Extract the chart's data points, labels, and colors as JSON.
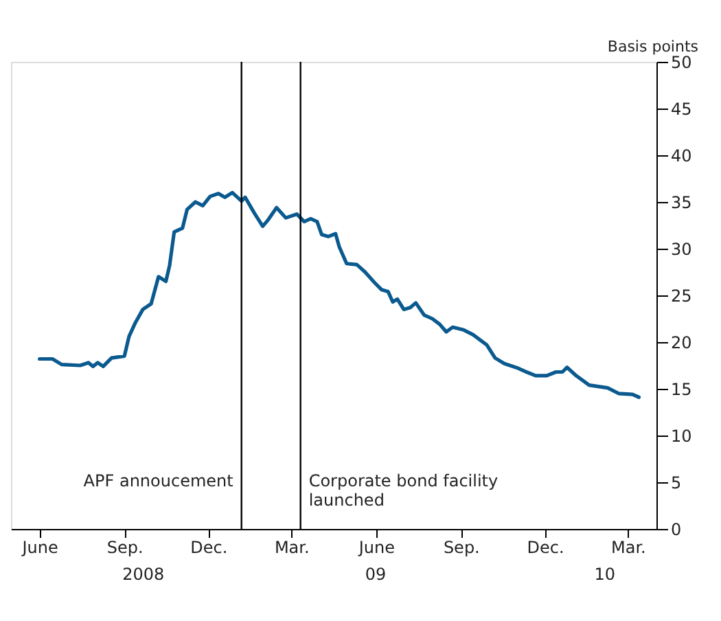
{
  "chart_data": {
    "type": "line",
    "ylabel": "Basis points",
    "x": [
      "2008-06-01",
      "2008-06-15",
      "2008-06-25",
      "2008-07-15",
      "2008-07-24",
      "2008-07-29",
      "2008-08-03",
      "2008-08-09",
      "2008-08-18",
      "2008-09-01",
      "2008-09-06",
      "2008-09-13",
      "2008-09-21",
      "2008-09-30",
      "2008-10-08",
      "2008-10-16",
      "2008-10-20",
      "2008-10-25",
      "2008-11-03",
      "2008-11-08",
      "2008-11-17",
      "2008-11-25",
      "2008-12-03",
      "2008-12-12",
      "2008-12-19",
      "2008-12-27",
      "2009-01-06",
      "2009-01-10",
      "2009-01-20",
      "2009-01-29",
      "2009-02-04",
      "2009-02-13",
      "2009-02-23",
      "2009-03-07",
      "2009-03-15",
      "2009-03-22",
      "2009-03-29",
      "2009-04-03",
      "2009-04-10",
      "2009-04-18",
      "2009-04-22",
      "2009-04-30",
      "2009-05-11",
      "2009-05-20",
      "2009-05-30",
      "2009-06-07",
      "2009-06-14",
      "2009-06-19",
      "2009-06-24",
      "2009-07-01",
      "2009-07-08",
      "2009-07-14",
      "2009-07-23",
      "2009-08-01",
      "2009-08-09",
      "2009-08-16",
      "2009-08-23",
      "2009-09-04",
      "2009-09-14",
      "2009-09-29",
      "2009-10-08",
      "2009-10-18",
      "2009-11-02",
      "2009-11-11",
      "2009-11-21",
      "2009-12-03",
      "2009-12-13",
      "2009-12-20",
      "2009-12-25",
      "2010-01-04",
      "2010-01-18",
      "2010-02-07",
      "2010-02-19",
      "2010-03-06",
      "2010-03-13"
    ],
    "series": [
      {
        "color": "#0b5a8f",
        "values": [
          18.2,
          18.2,
          17.6,
          17.5,
          17.8,
          17.4,
          17.8,
          17.4,
          18.3,
          18.5,
          20.6,
          22.1,
          23.5,
          24.1,
          27.0,
          26.5,
          28.2,
          31.8,
          32.2,
          34.2,
          35.0,
          34.6,
          35.6,
          35.9,
          35.5,
          36.0,
          35.1,
          35.5,
          33.8,
          32.4,
          33.1,
          34.4,
          33.3,
          33.7,
          32.9,
          33.2,
          32.9,
          31.5,
          31.3,
          31.6,
          30.2,
          28.4,
          28.3,
          27.5,
          26.4,
          25.6,
          25.4,
          24.3,
          24.6,
          23.5,
          23.7,
          24.2,
          22.9,
          22.5,
          21.9,
          21.1,
          21.6,
          21.3,
          20.8,
          19.7,
          18.3,
          17.7,
          17.2,
          16.8,
          16.4,
          16.4,
          16.8,
          16.8,
          17.3,
          16.4,
          15.4,
          15.1,
          14.5,
          14.4,
          14.1
        ]
      }
    ],
    "xlim": [
      "2008-05-01",
      "2010-04-01"
    ],
    "xticks": [
      {
        "value": "2008-06-01",
        "label": "June"
      },
      {
        "value": "2008-09-01",
        "label": "Sep."
      },
      {
        "value": "2008-12-01",
        "label": "Dec."
      },
      {
        "value": "2009-03-01",
        "label": "Mar."
      },
      {
        "value": "2009-06-01",
        "label": "June"
      },
      {
        "value": "2009-09-01",
        "label": "Sep."
      },
      {
        "value": "2009-12-01",
        "label": "Dec."
      },
      {
        "value": "2010-03-01",
        "label": "Mar."
      }
    ],
    "annotations": [
      "2008",
      "09",
      "10"
    ],
    "ylim": [
      0,
      50
    ],
    "yticks": [
      0,
      5,
      10,
      15,
      20,
      25,
      30,
      35,
      40,
      45,
      50
    ],
    "ref_lines": [
      {
        "axis": "x",
        "value": "2009-01-06",
        "label": "APF annoucement",
        "color": "#000000"
      },
      {
        "axis": "x",
        "value": "2009-03-11",
        "label": "Corporate bond facility\n launched",
        "color": "#000000"
      }
    ],
    "grid": false,
    "legend": false,
    "line_style": "solid"
  }
}
